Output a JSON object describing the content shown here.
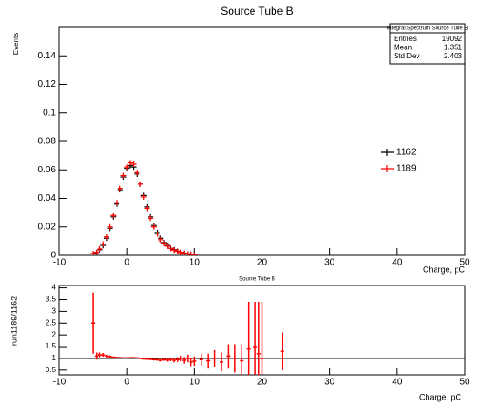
{
  "chart_data": [
    {
      "type": "errorbar",
      "title": "Source Tube B",
      "xlabel": "Charge, pC",
      "ylabel": "Events",
      "xlim": [
        -10,
        50
      ],
      "ylim": [
        0,
        0.16
      ],
      "xticks": [
        -10,
        0,
        10,
        20,
        30,
        40,
        50
      ],
      "yticks": [
        0,
        0.02,
        0.04,
        0.06,
        0.08,
        0.1,
        0.12,
        0.14
      ],
      "legend": "right",
      "x": [
        -5,
        -4.5,
        -4,
        -3.5,
        -3,
        -2.5,
        -2,
        -1.5,
        -1,
        -0.5,
        0,
        0.5,
        1,
        1.5,
        2,
        2.5,
        3,
        3.5,
        4,
        4.5,
        5,
        5.5,
        6,
        6.5,
        7,
        7.5,
        8,
        8.5,
        9,
        9.5,
        10
      ],
      "series": [
        {
          "name": "1162",
          "color": "#000000",
          "values": [
            0.001,
            0.002,
            0.004,
            0.007,
            0.012,
            0.019,
            0.027,
            0.036,
            0.046,
            0.055,
            0.061,
            0.063,
            0.062,
            0.057,
            0.05,
            0.042,
            0.034,
            0.027,
            0.021,
            0.016,
            0.012,
            0.009,
            0.007,
            0.005,
            0.004,
            0.003,
            0.002,
            0.0015,
            0.001,
            0.0008,
            0.0006
          ]
        },
        {
          "name": "1189",
          "color": "#ff0000",
          "values": [
            0.0012,
            0.0022,
            0.0045,
            0.008,
            0.013,
            0.02,
            0.028,
            0.037,
            0.047,
            0.056,
            0.062,
            0.065,
            0.064,
            0.058,
            0.05,
            0.041,
            0.033,
            0.026,
            0.02,
            0.015,
            0.011,
            0.0085,
            0.0065,
            0.0048,
            0.0037,
            0.0028,
            0.002,
            0.0014,
            0.001,
            0.0007,
            0.0005
          ]
        }
      ],
      "stats_box": {
        "title": "Integral Spectrum Source Tube B",
        "rows": [
          {
            "label": "Entries",
            "value": 19092
          },
          {
            "label": "Mean",
            "value": 1.351
          },
          {
            "label": "Std Dev",
            "value": 2.403
          }
        ]
      }
    },
    {
      "type": "ratio",
      "title": "Source Tube B",
      "xlabel": "Charge, pC",
      "ylabel": "run1189/1162",
      "xlim": [
        -10,
        50
      ],
      "ylim": [
        0.3,
        4.1
      ],
      "xticks": [
        -10,
        0,
        10,
        20,
        30,
        40,
        50
      ],
      "yticks": [
        0.5,
        1,
        1.5,
        2,
        2.5,
        3,
        3.5,
        4
      ],
      "reference_line": 1,
      "color": "#ff0000",
      "x": [
        -5,
        -4.5,
        -4,
        -3.5,
        -3,
        -2.5,
        -2,
        -1.5,
        -1,
        -0.5,
        0,
        0.5,
        1,
        1.5,
        2,
        2.5,
        3,
        3.5,
        4,
        4.5,
        5,
        5.5,
        6,
        6.5,
        7,
        7.5,
        8,
        8.5,
        9,
        9.5,
        10,
        11,
        12,
        13,
        14,
        15,
        16,
        17,
        18,
        19,
        19.5,
        20,
        23
      ],
      "values": [
        2.5,
        1.1,
        1.15,
        1.15,
        1.1,
        1.08,
        1.05,
        1.04,
        1.03,
        1.02,
        1.02,
        1.03,
        1.03,
        1.02,
        1.0,
        0.98,
        0.97,
        0.96,
        0.95,
        0.94,
        0.92,
        0.95,
        0.93,
        0.96,
        0.92,
        0.95,
        1.0,
        0.92,
        1.0,
        0.85,
        0.88,
        0.95,
        0.9,
        1.0,
        0.85,
        1.1,
        1.0,
        0.9,
        1.4,
        1.5,
        1.2,
        1.0,
        1.3
      ],
      "errors": [
        1.3,
        0.15,
        0.1,
        0.08,
        0.06,
        0.05,
        0.04,
        0.03,
        0.03,
        0.02,
        0.02,
        0.02,
        0.02,
        0.02,
        0.02,
        0.03,
        0.03,
        0.03,
        0.04,
        0.04,
        0.05,
        0.06,
        0.07,
        0.08,
        0.09,
        0.1,
        0.12,
        0.14,
        0.16,
        0.18,
        0.2,
        0.25,
        0.3,
        0.35,
        0.4,
        0.5,
        0.6,
        0.7,
        2.0,
        1.9,
        2.2,
        2.4,
        0.8
      ]
    }
  ]
}
